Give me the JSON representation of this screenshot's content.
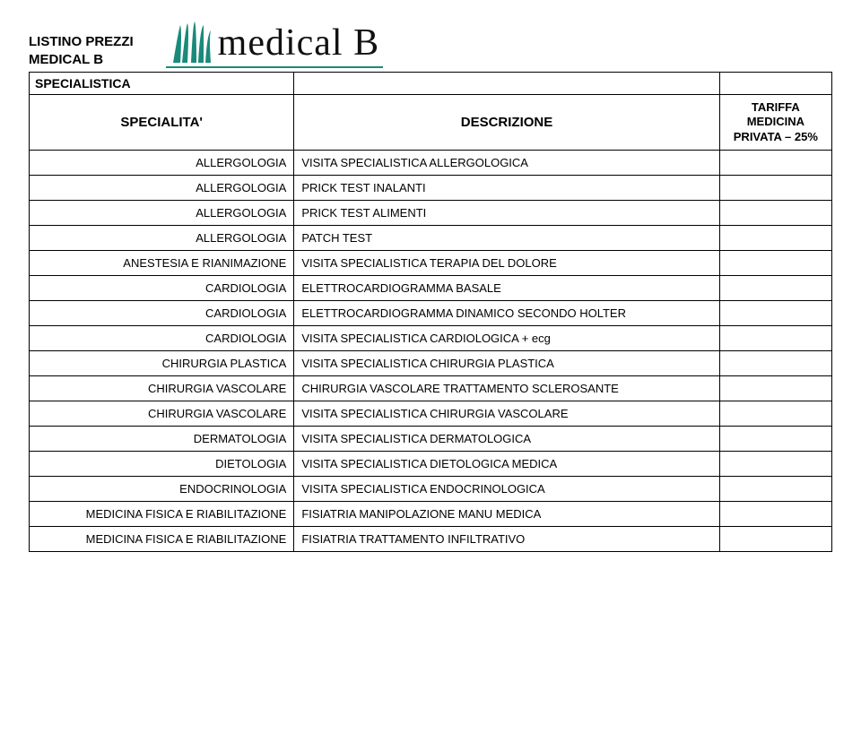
{
  "header": {
    "title_line1": "LISTINO PREZZI",
    "title_line2": "MEDICAL B",
    "logo_text": "medical B",
    "logo_color": "#1a8a7a"
  },
  "table": {
    "section_label": "SPECIALISTICA",
    "columns": {
      "specialita": "SPECIALITA'",
      "descrizione": "DESCRIZIONE",
      "tariffa": "TARIFFA MEDICINA PRIVATA – 25%"
    },
    "rows": [
      {
        "specialita": "ALLERGOLOGIA",
        "descrizione": "VISITA SPECIALISTICA ALLERGOLOGICA",
        "tariffa": ""
      },
      {
        "specialita": "ALLERGOLOGIA",
        "descrizione": "PRICK TEST INALANTI",
        "tariffa": ""
      },
      {
        "specialita": "ALLERGOLOGIA",
        "descrizione": "PRICK TEST ALIMENTI",
        "tariffa": ""
      },
      {
        "specialita": "ALLERGOLOGIA",
        "descrizione": "PATCH TEST",
        "tariffa": ""
      },
      {
        "specialita": "ANESTESIA E RIANIMAZIONE",
        "descrizione": "VISITA SPECIALISTICA TERAPIA DEL DOLORE",
        "tariffa": ""
      },
      {
        "specialita": "CARDIOLOGIA",
        "descrizione": "ELETTROCARDIOGRAMMA BASALE",
        "tariffa": ""
      },
      {
        "specialita": "CARDIOLOGIA",
        "descrizione": "ELETTROCARDIOGRAMMA DINAMICO SECONDO HOLTER",
        "tariffa": ""
      },
      {
        "specialita": "CARDIOLOGIA",
        "descrizione": "VISITA SPECIALISTICA CARDIOLOGICA + ecg",
        "tariffa": ""
      },
      {
        "specialita": "CHIRURGIA PLASTICA",
        "descrizione": "VISITA SPECIALISTICA CHIRURGIA PLASTICA",
        "tariffa": ""
      },
      {
        "specialita": "CHIRURGIA VASCOLARE",
        "descrizione": "CHIRURGIA VASCOLARE TRATTAMENTO SCLEROSANTE",
        "tariffa": ""
      },
      {
        "specialita": "CHIRURGIA VASCOLARE",
        "descrizione": "VISITA SPECIALISTICA CHIRURGIA VASCOLARE",
        "tariffa": ""
      },
      {
        "specialita": "DERMATOLOGIA",
        "descrizione": "VISITA SPECIALISTICA DERMATOLOGICA",
        "tariffa": ""
      },
      {
        "specialita": "DIETOLOGIA",
        "descrizione": "VISITA SPECIALISTICA DIETOLOGICA MEDICA",
        "tariffa": ""
      },
      {
        "specialita": "ENDOCRINOLOGIA",
        "descrizione": "VISITA SPECIALISTICA ENDOCRINOLOGICA",
        "tariffa": ""
      },
      {
        "specialita": "MEDICINA FISICA E RIABILITAZIONE",
        "descrizione": "FISIATRIA MANIPOLAZIONE MANU MEDICA",
        "tariffa": ""
      },
      {
        "specialita": "MEDICINA FISICA E RIABILITAZIONE",
        "descrizione": "FISIATRIA TRATTAMENTO INFILTRATIVO",
        "tariffa": ""
      }
    ]
  },
  "style": {
    "page_bg": "#ffffff",
    "border_color": "#000000",
    "text_color": "#000000",
    "font_family": "Arial, Helvetica, sans-serif",
    "header_fontsize_pt": 11,
    "cell_fontsize_pt": 10,
    "col_widths_pct": [
      33,
      53,
      14
    ]
  }
}
